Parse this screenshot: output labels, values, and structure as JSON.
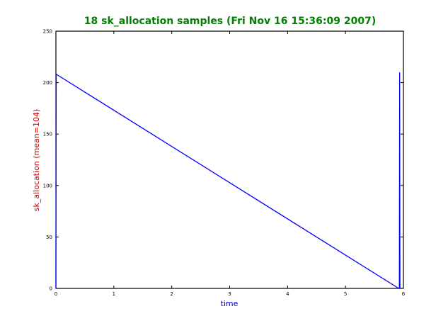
{
  "chart_data": {
    "type": "line",
    "title": "18 sk_allocation samples (Fri Nov 16 15:36:09 2007)",
    "xlabel": "time",
    "ylabel": "sk_allocation (mean=104)",
    "xlim": [
      0,
      6
    ],
    "ylim": [
      0,
      250
    ],
    "xticks": [
      "0",
      "1",
      "2",
      "3",
      "4",
      "5",
      "6"
    ],
    "yticks": [
      "0",
      "50",
      "100",
      "150",
      "200",
      "250"
    ],
    "grid": false,
    "series": [
      {
        "color": "#0000ff",
        "x": [
          0.0,
          0.005,
          0.01,
          5.92,
          5.93,
          5.935,
          5.94
        ],
        "y": [
          0,
          208,
          208,
          0,
          0,
          210,
          0
        ]
      }
    ],
    "colors": {
      "title": "#008000",
      "xlabel": "#0000cc",
      "ylabel": "#cc0000",
      "line": "#0000ff"
    }
  }
}
